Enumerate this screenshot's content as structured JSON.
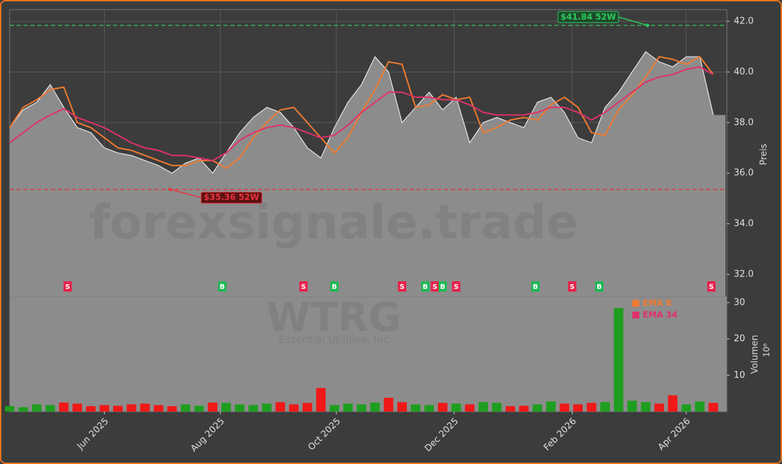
{
  "chart_data": {
    "type": "price-volume",
    "ticker": "WTRG",
    "company": "Essential Utilities, Inc",
    "watermark": "forexsignale.trade",
    "y_label": "Preis",
    "volume_label": "Volumen",
    "volume_unit": "10⁶",
    "x": [
      0,
      7,
      14,
      21,
      28,
      35,
      42,
      49,
      56,
      63,
      70,
      77,
      84,
      91,
      98,
      105,
      112,
      119,
      126,
      133,
      140,
      147,
      154,
      161,
      168,
      175,
      182,
      189,
      196,
      203,
      210,
      217,
      224,
      231,
      238,
      245,
      252,
      259,
      266,
      273,
      280,
      287,
      294,
      301,
      308,
      315,
      322,
      329,
      336,
      343,
      350,
      357,
      364
    ],
    "close": [
      37.8,
      38.5,
      38.8,
      39.5,
      38.6,
      37.8,
      37.6,
      37.0,
      36.8,
      36.7,
      36.5,
      36.3,
      36.0,
      36.4,
      36.6,
      36.0,
      36.8,
      37.6,
      38.2,
      38.6,
      38.4,
      37.8,
      37.0,
      36.6,
      37.8,
      38.8,
      39.5,
      40.6,
      40.0,
      38.0,
      38.6,
      39.2,
      38.5,
      39.0,
      37.2,
      38.0,
      38.2,
      38.0,
      37.8,
      38.8,
      39.0,
      38.4,
      37.4,
      37.2,
      38.6,
      39.2,
      40.0,
      40.8,
      40.4,
      40.2,
      40.6,
      40.6,
      38.3
    ],
    "series": [
      {
        "name": "EMA 8",
        "color": "#f07a30",
        "values": [
          37.8,
          38.6,
          38.9,
          39.3,
          39.4,
          38.0,
          37.8,
          37.4,
          37.0,
          36.9,
          36.7,
          36.5,
          36.3,
          36.3,
          36.5,
          36.5,
          36.2,
          36.6,
          37.4,
          38.0,
          38.5,
          38.6,
          38.0,
          37.4,
          36.8,
          37.4,
          38.4,
          39.3,
          40.4,
          40.3,
          38.6,
          38.7,
          39.1,
          38.9,
          39.0,
          37.6,
          37.8,
          38.1,
          38.2,
          38.1,
          38.7,
          39.0,
          38.6,
          37.6,
          37.5,
          38.5,
          39.1,
          39.8,
          40.6,
          40.5,
          40.3,
          40.6,
          39.9
        ]
      },
      {
        "name": "EMA 34",
        "color": "#e2306a",
        "values": [
          37.2,
          37.6,
          38.0,
          38.3,
          38.55,
          38.2,
          38.0,
          37.8,
          37.5,
          37.2,
          37.0,
          36.9,
          36.7,
          36.7,
          36.6,
          36.5,
          36.8,
          37.3,
          37.6,
          37.8,
          37.9,
          37.8,
          37.6,
          37.4,
          37.5,
          37.9,
          38.4,
          38.8,
          39.2,
          39.2,
          39.0,
          39.0,
          38.9,
          38.9,
          38.7,
          38.4,
          38.3,
          38.3,
          38.3,
          38.4,
          38.6,
          38.6,
          38.4,
          38.1,
          38.4,
          38.8,
          39.2,
          39.6,
          39.8,
          39.9,
          40.1,
          40.2,
          39.9
        ]
      }
    ],
    "volume": [
      1.5,
      1.2,
      2.0,
      1.8,
      2.5,
      2.2,
      1.5,
      1.8,
      1.6,
      2.0,
      2.2,
      1.8,
      1.5,
      2.0,
      1.6,
      2.5,
      2.4,
      2.0,
      1.8,
      2.2,
      2.6,
      2.0,
      2.4,
      6.5,
      1.8,
      2.2,
      2.0,
      2.5,
      3.8,
      2.6,
      2.0,
      1.8,
      2.4,
      2.2,
      2.0,
      2.6,
      2.4,
      1.5,
      1.6,
      2.0,
      2.8,
      2.2,
      2.0,
      2.4,
      2.6,
      28.5,
      3.0,
      2.6,
      2.2,
      4.5,
      2.0,
      2.8,
      2.4
    ],
    "up_color": "#1e9e1e",
    "down_color": "#f01818",
    "area_color": "#8c8c8c",
    "signals": {
      "x": [
        30,
        110,
        152,
        168,
        203,
        215,
        220,
        224,
        231,
        272,
        291,
        305,
        363
      ],
      "labels": [
        "S",
        "B",
        "S",
        "B",
        "S",
        "B",
        "S",
        "B",
        "S",
        "B",
        "S",
        "B",
        "S"
      ]
    },
    "signal_colors": {
      "B": "#1db954",
      "S": "#e8214a"
    },
    "annotations": [
      {
        "label": "$41.84 52W",
        "value": 41.84,
        "x": 330,
        "color": "#2ec95c"
      },
      {
        "label": "$35.36 52W",
        "value": 35.36,
        "x": 83,
        "color": "#e8323c"
      }
    ],
    "xlim": [
      0,
      371
    ],
    "xticks": [
      {
        "value": 49,
        "label": "Jun 2025"
      },
      {
        "value": 109,
        "label": "Aug 2025"
      },
      {
        "value": 169,
        "label": "Oct 2025"
      },
      {
        "value": 230,
        "label": "Dec 2025"
      },
      {
        "value": 291,
        "label": "Feb 2026"
      },
      {
        "value": 350,
        "label": "Apr 2026"
      }
    ],
    "ylim": [
      31.13,
      42.46
    ],
    "yticks": [
      {
        "value": 32,
        "label": "32.0"
      },
      {
        "value": 34,
        "label": "34.0"
      },
      {
        "value": 36,
        "label": "36.0"
      },
      {
        "value": 38,
        "label": "38.0"
      },
      {
        "value": 40,
        "label": "40.0"
      },
      {
        "value": 42,
        "label": "42.0"
      }
    ],
    "y2lim": [
      0,
      31.7
    ],
    "y2ticks": [
      10,
      20,
      30
    ],
    "grid": true
  }
}
